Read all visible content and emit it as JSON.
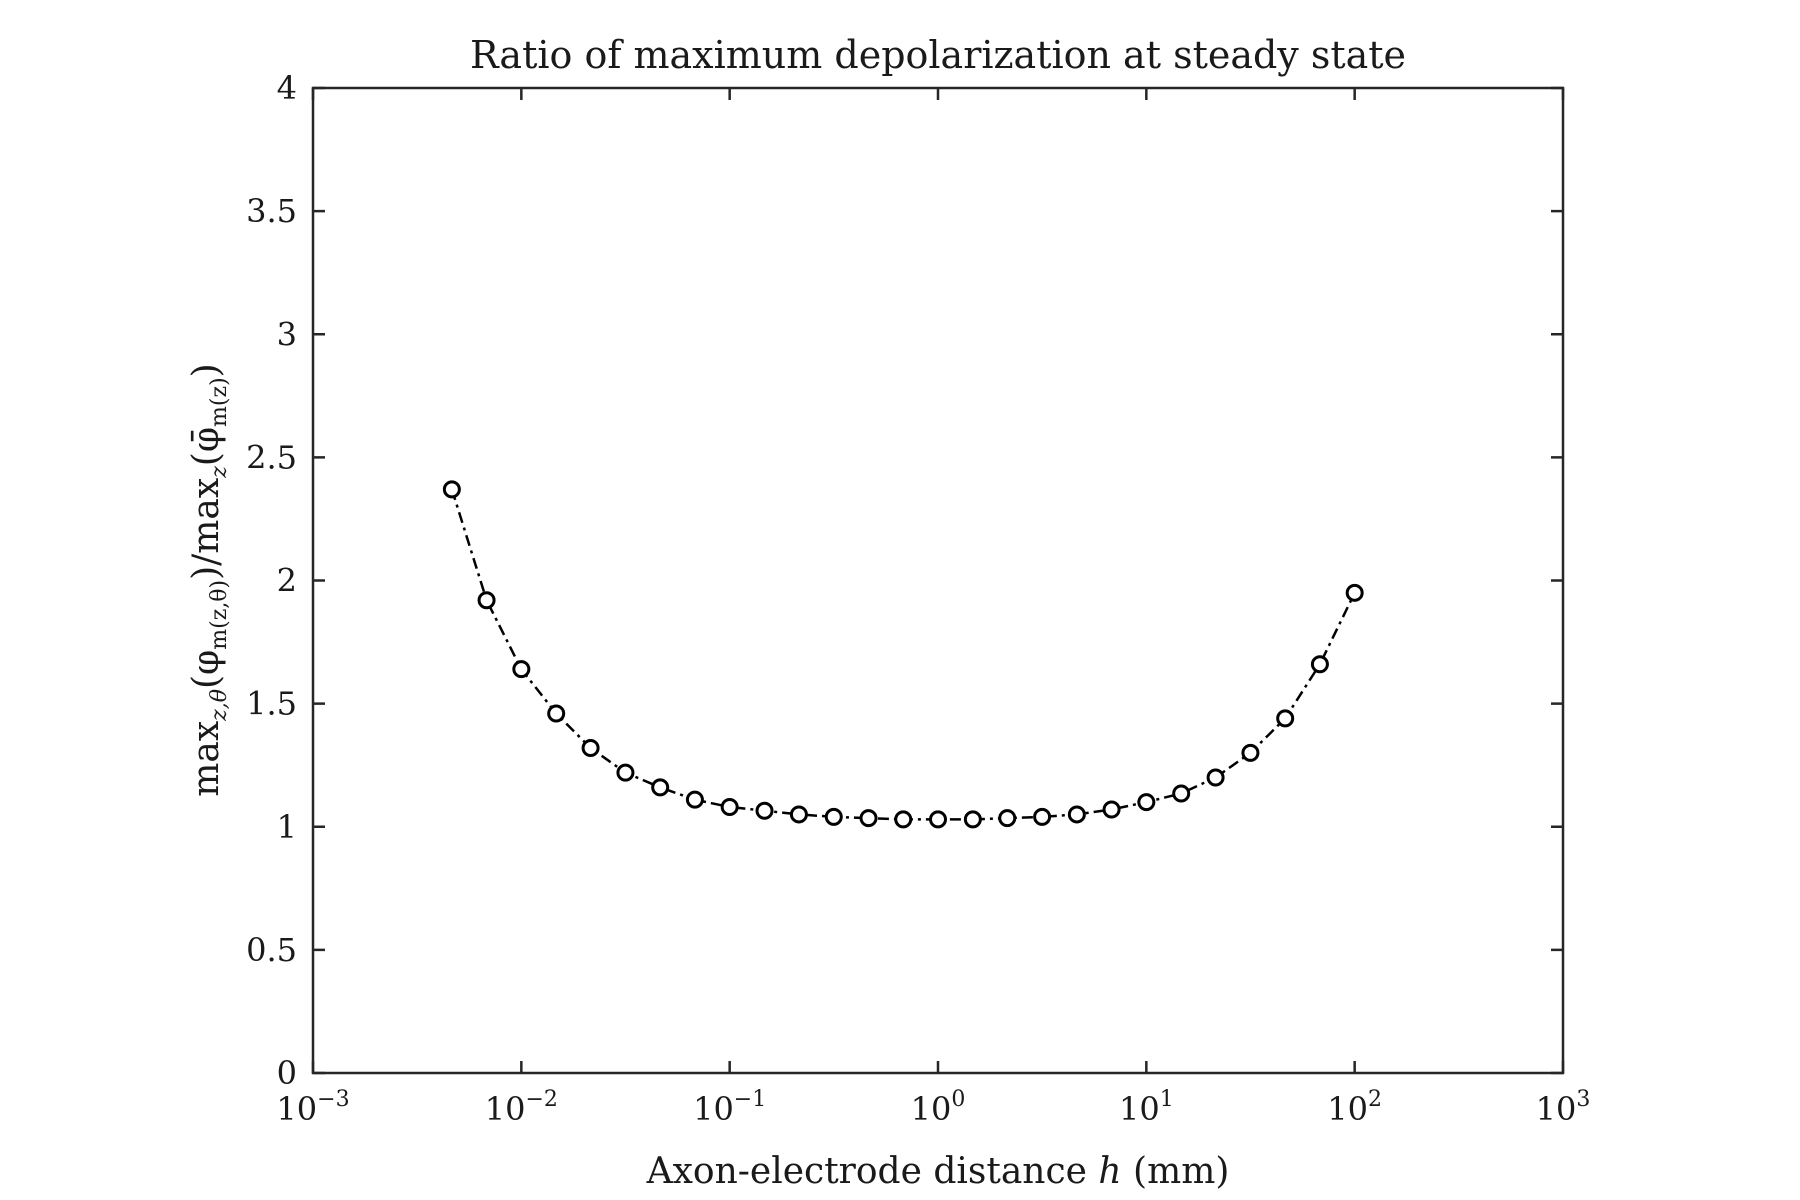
{
  "chart_data": {
    "type": "line",
    "title": "Ratio of maximum depolarization at steady state",
    "xlabel": {
      "before": "Axon-electrode distance ",
      "variable": "h",
      "after": " (mm)"
    },
    "ylabel": {
      "part1": "max",
      "sub1": "z,θ",
      "part2": "(φ",
      "sub2": "m(z,θ)",
      "part3": ")/max",
      "sub3": "z",
      "part4": "(φ̄",
      "sub4": "m(z)",
      "part5": ")"
    },
    "xscale": "log",
    "xlim": [
      0.001,
      1000
    ],
    "ylim": [
      0,
      4
    ],
    "xticks": [
      {
        "base": "10",
        "exp": "−3"
      },
      {
        "base": "10",
        "exp": "−2"
      },
      {
        "base": "10",
        "exp": "−1"
      },
      {
        "base": "10",
        "exp": "0"
      },
      {
        "base": "10",
        "exp": "1"
      },
      {
        "base": "10",
        "exp": "2"
      },
      {
        "base": "10",
        "exp": "3"
      }
    ],
    "yticks": [
      "0",
      "0.5",
      "1",
      "1.5",
      "2",
      "2.5",
      "3",
      "3.5",
      "4"
    ],
    "grid": false,
    "series": [
      {
        "line_style": "dash-dot",
        "marker": "open-circle",
        "color": "#000000",
        "x": [
          0.00464,
          0.00681,
          0.01,
          0.0147,
          0.0215,
          0.0316,
          0.0464,
          0.0681,
          0.1,
          0.147,
          0.215,
          0.316,
          0.464,
          0.681,
          1.0,
          1.47,
          2.15,
          3.16,
          4.64,
          6.81,
          10,
          14.7,
          21.5,
          31.6,
          46.4,
          68.1,
          100
        ],
        "y": [
          2.37,
          1.92,
          1.64,
          1.46,
          1.32,
          1.22,
          1.16,
          1.11,
          1.08,
          1.065,
          1.05,
          1.04,
          1.035,
          1.03,
          1.03,
          1.03,
          1.035,
          1.04,
          1.05,
          1.07,
          1.1,
          1.135,
          1.2,
          1.3,
          1.44,
          1.66,
          1.95
        ]
      }
    ]
  }
}
